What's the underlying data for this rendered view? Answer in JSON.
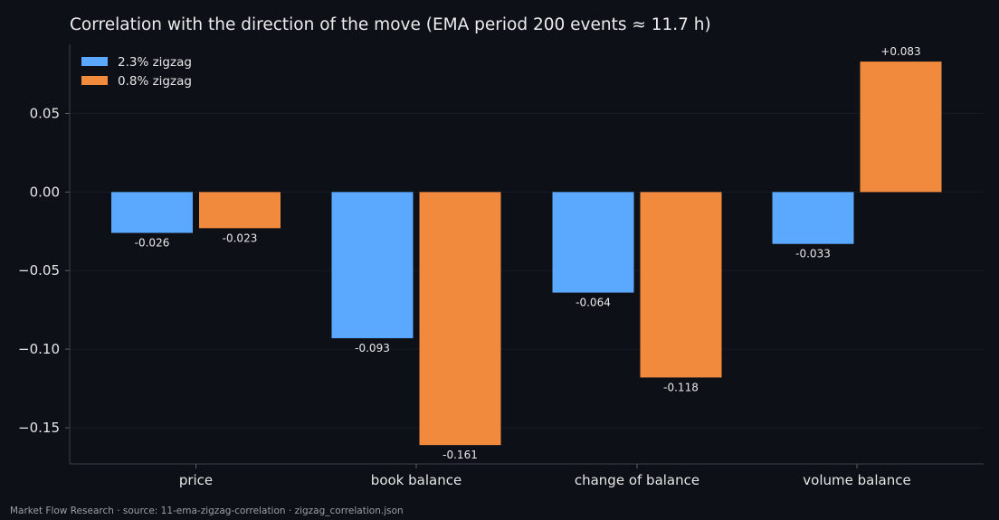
{
  "chart_data": {
    "type": "bar",
    "title": "Correlation with the direction of the move (EMA period 200 events ≈ 11.7 h)",
    "xlabel": "",
    "ylabel": "",
    "categories": [
      "price",
      "book balance",
      "change of balance",
      "volume balance"
    ],
    "series": [
      {
        "name": "2.3% zigzag",
        "color": "#5ba8ff",
        "values": [
          -0.026,
          -0.093,
          -0.064,
          -0.033
        ],
        "labels": [
          "-0.026",
          "-0.093",
          "-0.064",
          "-0.033"
        ]
      },
      {
        "name": "0.8% zigzag",
        "color": "#f28a3e",
        "values": [
          -0.023,
          -0.161,
          -0.118,
          0.083
        ],
        "labels": [
          "-0.023",
          "-0.161",
          "-0.118",
          "+0.083"
        ]
      }
    ],
    "ylim": [
      -0.173,
      0.094
    ],
    "yticks": [
      0.05,
      0.0,
      -0.05,
      -0.1,
      -0.15
    ],
    "ytick_labels": [
      "0.05",
      "0.00",
      "−0.05",
      "−0.10",
      "−0.15"
    ],
    "grid": true,
    "legend_position": "top-left"
  },
  "footer": {
    "text": "Market Flow Research · source: 11-ema-zigzag-correlation · zigzag_correlation.json"
  }
}
